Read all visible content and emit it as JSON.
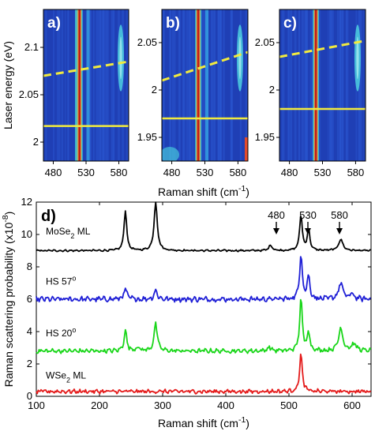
{
  "chart_data": [
    {
      "type": "heatmap",
      "panel_label": "a)",
      "xlabel": "Raman shift (cm⁻¹)",
      "ylabel": "Laser energy (eV)",
      "xticks": [
        480,
        530,
        580
      ],
      "yticks": [
        "2",
        "2.05",
        "2.1"
      ],
      "xlim": [
        465,
        595
      ],
      "ylim": [
        1.98,
        2.14
      ],
      "peaks_cm1": [
        518,
        520,
        533,
        583
      ],
      "dashed_line_eV": [
        2.07,
        2.085
      ],
      "horizontal_line_eV": 2.017,
      "colors": {
        "background": "#1f3fb5",
        "peak": "#c11a1a",
        "line": "#f1ea3e"
      }
    },
    {
      "type": "heatmap",
      "panel_label": "b)",
      "xticks": [
        480,
        530,
        580
      ],
      "yticks": [
        "1.95",
        "2",
        "2.05"
      ],
      "xlim": [
        465,
        595
      ],
      "ylim": [
        1.925,
        2.085
      ],
      "peaks_cm1": [
        520,
        533,
        583
      ],
      "dashed_line_eV": [
        2.01,
        2.04
      ],
      "horizontal_line_eV": 1.97,
      "colors": {
        "background": "#1f3fb5",
        "peak": "#c11a1a",
        "line": "#f1ea3e"
      }
    },
    {
      "type": "heatmap",
      "panel_label": "c)",
      "xticks": [
        480,
        530,
        580
      ],
      "yticks": [
        "1.95",
        "2",
        "2.05"
      ],
      "xlim": [
        465,
        595
      ],
      "ylim": [
        1.925,
        2.085
      ],
      "peaks_cm1": [
        520,
        583
      ],
      "dashed_line_eV": [
        2.035,
        2.052
      ],
      "horizontal_line_eV": 1.98,
      "colors": {
        "background": "#1f3fb5",
        "peak": "#c11a1a",
        "line": "#f1ea3e"
      }
    },
    {
      "type": "line",
      "panel_label": "d)",
      "xlabel": "Raman shift (cm⁻¹)",
      "ylabel": "Raman scattering probability (x10⁻⁸)",
      "xlim": [
        100,
        630
      ],
      "ylim": [
        0,
        12
      ],
      "xticks": [
        100,
        200,
        300,
        400,
        500,
        600
      ],
      "yticks": [
        0,
        2,
        4,
        6,
        8,
        10,
        12
      ],
      "arrows": [
        {
          "label": "480",
          "x": 480
        },
        {
          "label": "530",
          "x": 530
        },
        {
          "label": "580",
          "x": 580
        }
      ],
      "series": [
        {
          "name": "MoSe₂ ML",
          "color": "#000000",
          "label_position": [
            115,
            10.0
          ],
          "baseline": 9.0,
          "noise": 0.04,
          "peaks": [
            [
              241,
              2.5,
              2.5
            ],
            [
              289,
              3.0,
              3.0
            ],
            [
              471,
              0.35,
              3
            ],
            [
              519,
              2.2,
              2.5
            ],
            [
              531,
              1.3,
              2.5
            ],
            [
              582,
              0.7,
              4
            ]
          ]
        },
        {
          "name": "HS 57°",
          "color": "#1f1fd6",
          "label_position": [
            115,
            6.9
          ],
          "baseline": 6.0,
          "noise": 0.12,
          "peaks": [
            [
              241,
              0.6,
              3
            ],
            [
              289,
              0.55,
              3
            ],
            [
              519,
              2.8,
              2.5
            ],
            [
              531,
              1.4,
              2.5
            ],
            [
              582,
              1.0,
              4
            ],
            [
              600,
              0.3,
              4
            ]
          ]
        },
        {
          "name": "HS 20°",
          "color": "#19d619",
          "label_position": [
            115,
            3.7
          ],
          "baseline": 2.8,
          "noise": 0.1,
          "peaks": [
            [
              241,
              1.3,
              2.5
            ],
            [
              260,
              0.2,
              4
            ],
            [
              289,
              1.7,
              3
            ],
            [
              469,
              0.25,
              3
            ],
            [
              519,
              3.2,
              2.5
            ],
            [
              531,
              1.2,
              2.5
            ],
            [
              582,
              1.4,
              4
            ],
            [
              603,
              0.4,
              5
            ]
          ]
        },
        {
          "name": "WSe₂ ML",
          "color": "#e41a1a",
          "label_position": [
            115,
            1.1
          ],
          "baseline": 0.3,
          "noise": 0.09,
          "peaks": [
            [
              519,
              2.3,
              2.5
            ]
          ]
        }
      ]
    }
  ]
}
